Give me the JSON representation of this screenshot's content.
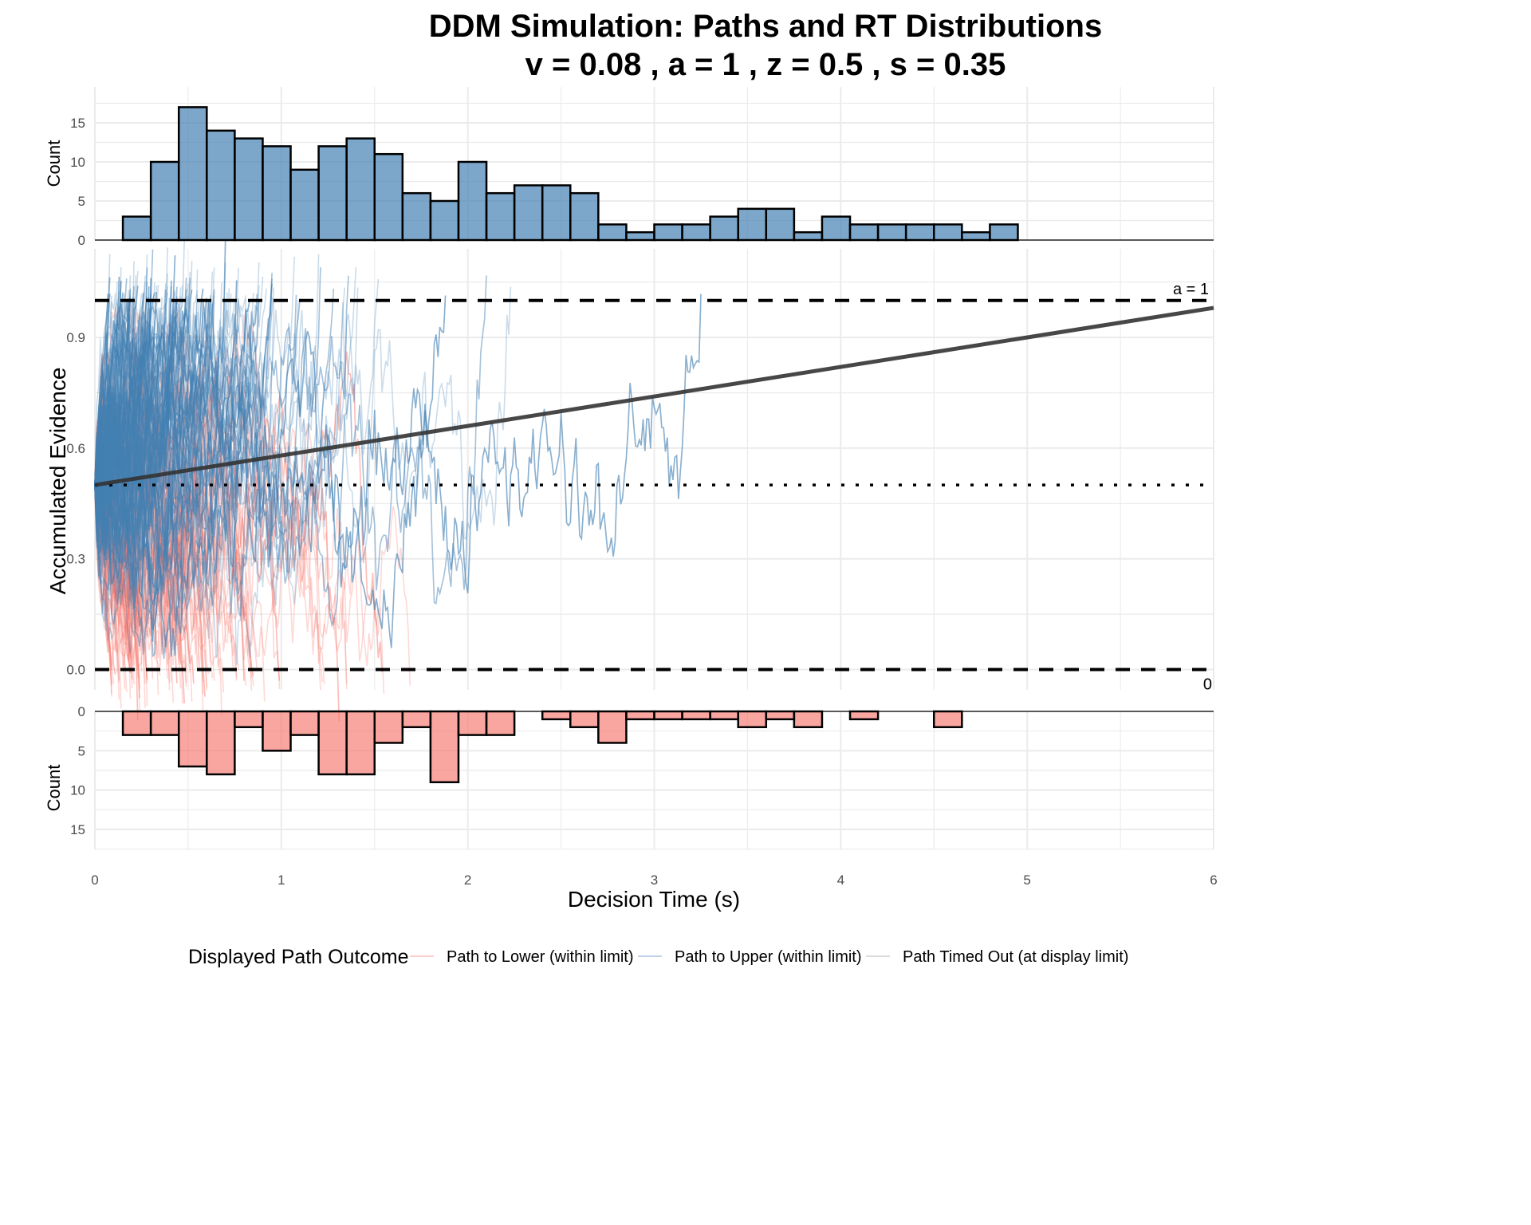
{
  "chart_data": [
    {
      "panel": "upper-rt-histogram",
      "type": "bar",
      "title": "DDM Simulation: Paths and RT Distributions",
      "subtitle": "v = 0.08 , a = 1 , z = 0.5 , s = 0.35",
      "ylabel": "Count",
      "bin_width": 0.15,
      "bin_starts": [
        0.15,
        0.3,
        0.45,
        0.6,
        0.75,
        0.9,
        1.05,
        1.2,
        1.35,
        1.5,
        1.65,
        1.8,
        1.95,
        2.1,
        2.25,
        2.4,
        2.55,
        2.7,
        2.85,
        3.0,
        3.15,
        3.3,
        3.45,
        3.6,
        3.75,
        3.9,
        4.05,
        4.2,
        4.35,
        4.5,
        4.65,
        4.8
      ],
      "values": [
        3,
        10,
        17,
        14,
        13,
        12,
        9,
        12,
        13,
        11,
        6,
        5,
        10,
        6,
        7,
        7,
        6,
        2,
        1,
        2,
        2,
        3,
        4,
        4,
        1,
        3,
        2,
        2,
        2,
        2,
        1,
        2
      ],
      "ylim": [
        0,
        19
      ],
      "yticks": [
        "0",
        "5",
        "10",
        "15"
      ],
      "fill": "#4682B4",
      "outline": "#000000"
    },
    {
      "panel": "main-paths",
      "type": "line",
      "xlabel": "Decision Time (s)",
      "ylabel": "Accumulated Evidence",
      "xlim": [
        0,
        6
      ],
      "ylim": [
        -0.055,
        1.14
      ],
      "yticks": [
        "0.0",
        "0.3",
        "0.6",
        "0.9"
      ],
      "ytick_values": [
        0.0,
        0.3,
        0.6,
        0.9
      ],
      "xticks": [
        "0",
        "1",
        "2",
        "3",
        "4",
        "5",
        "6"
      ],
      "xtick_values": [
        0,
        1,
        2,
        3,
        4,
        5,
        6
      ],
      "upper_boundary": {
        "value": 1,
        "label": "a = 1",
        "style": "dashed"
      },
      "lower_boundary": {
        "value": 0,
        "label": "0",
        "style": "dashed"
      },
      "start_point": {
        "value": 0.5,
        "style": "dotted"
      },
      "drift_line": {
        "start": [
          0,
          0.5
        ],
        "slope": 0.08,
        "color": "#333333"
      },
      "display_time_limit": 5,
      "path_groups": [
        {
          "name": "Path to Lower (within limit)",
          "color": "#F8766D",
          "approx_count": 106
        },
        {
          "name": "Path to Upper (within limit)",
          "color": "#4682B4",
          "approx_count": 234
        },
        {
          "name": "Path Timed Out (at display limit)",
          "color": "#999999",
          "approx_count": 20
        }
      ],
      "grid": true
    },
    {
      "panel": "lower-rt-histogram",
      "type": "bar",
      "ylabel": "Count",
      "orientation": "downward",
      "bin_width": 0.15,
      "bin_starts": [
        0.15,
        0.3,
        0.45,
        0.6,
        0.75,
        0.9,
        1.05,
        1.2,
        1.35,
        1.5,
        1.65,
        1.8,
        1.95,
        2.1,
        2.4,
        2.55,
        2.7,
        2.85,
        3.0,
        3.15,
        3.3,
        3.45,
        3.6,
        3.75,
        4.05,
        4.5
      ],
      "values": [
        3,
        3,
        7,
        8,
        2,
        5,
        3,
        8,
        8,
        4,
        2,
        9,
        3,
        3,
        1,
        2,
        4,
        1,
        1,
        1,
        1,
        2,
        1,
        2,
        1,
        2
      ],
      "ylim": [
        0,
        17.5
      ],
      "yticks": [
        "0",
        "5",
        "10",
        "15"
      ],
      "fill": "#F8766D",
      "outline": "#000000"
    }
  ],
  "legend": {
    "title": "Displayed Path Outcome",
    "position": "bottom",
    "items": [
      {
        "label": "Path to Lower (within limit)",
        "color": "#F8766D"
      },
      {
        "label": "Path to Upper (within limit)",
        "color": "#4682B4"
      },
      {
        "label": "Path Timed Out (at display limit)",
        "color": "#999999"
      }
    ]
  }
}
